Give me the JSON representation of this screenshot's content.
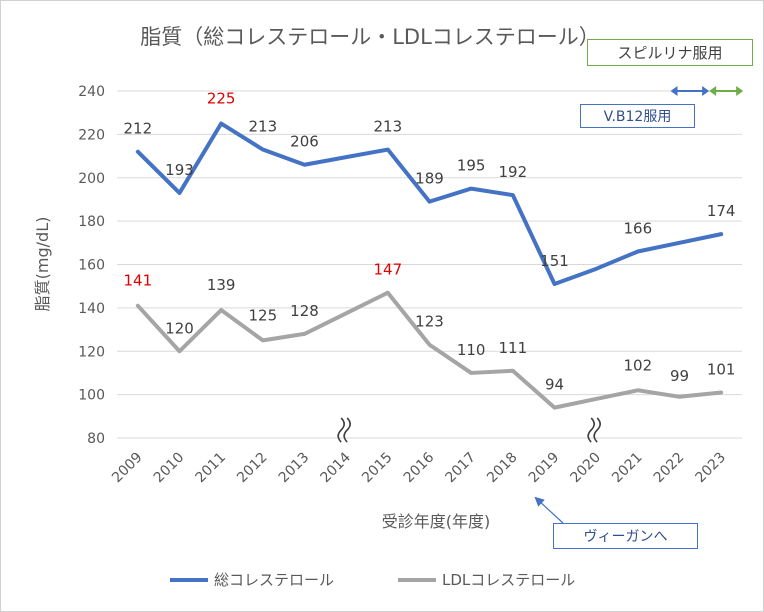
{
  "chart_data": {
    "type": "line",
    "title": "脂質（総コレステロール・LDLコレステロール）",
    "xlabel": "受診年度(年度)",
    "ylabel": "脂質(mg/dL)",
    "ylim": [
      80,
      240
    ],
    "yticks": [
      "80",
      "100",
      "120",
      "140",
      "160",
      "180",
      "200",
      "220",
      "240"
    ],
    "categories": [
      "2009",
      "2010",
      "2011",
      "2012",
      "2013",
      "2014",
      "2015",
      "2016",
      "2017",
      "2018",
      "2019",
      "2020",
      "2021",
      "2022",
      "2023"
    ],
    "grid": true,
    "legend_position": "bottom",
    "series": [
      {
        "name": "総コレステロール",
        "color": "#4472c4",
        "values": [
          212,
          193,
          225,
          213,
          206,
          209.5,
          213,
          189,
          195,
          192,
          151,
          158,
          166,
          170,
          174
        ],
        "labels": [
          "212",
          "193",
          "225",
          "213",
          "206",
          "",
          "213",
          "189",
          "195",
          "192",
          "151",
          "",
          "166",
          "",
          "174"
        ],
        "label_colors": [
          "#404040",
          "#404040",
          "#e00000",
          "#404040",
          "#404040",
          "",
          "#404040",
          "#404040",
          "#404040",
          "#404040",
          "#404040",
          "",
          "#404040",
          "",
          "#404040"
        ]
      },
      {
        "name": "LDLコレステロール",
        "color": "#a5a5a5",
        "values": [
          141,
          120,
          139,
          125,
          128,
          137.5,
          147,
          123,
          110,
          111,
          94,
          98,
          102,
          99,
          101
        ],
        "labels": [
          "141",
          "120",
          "139",
          "125",
          "128",
          "",
          "147",
          "123",
          "110",
          "111",
          "94",
          "",
          "102",
          "99",
          "101"
        ],
        "label_colors": [
          "#e00000",
          "#404040",
          "#404040",
          "#404040",
          "#404040",
          "",
          "#e00000",
          "#404040",
          "#404040",
          "#404040",
          "#404040",
          "",
          "#404040",
          "#404040",
          "#404040"
        ]
      }
    ],
    "axis_breaks": [
      "2014",
      "2020"
    ],
    "arrows": [
      {
        "from": "2022",
        "to": "2023",
        "color": "#4472c4"
      },
      {
        "from": "2023",
        "to": "2023",
        "color": "#70ad47"
      }
    ]
  },
  "annotations": {
    "spirulina": "スピルリナ服用",
    "vb12": "V.B12服用",
    "vegan": "ヴィーガンへ"
  },
  "colors": {
    "gridline": "#d9d9d9",
    "axis_text": "#595959",
    "title_text": "#595959",
    "spirulina_border": "#70ad47",
    "vb12_border": "#4472c4"
  }
}
